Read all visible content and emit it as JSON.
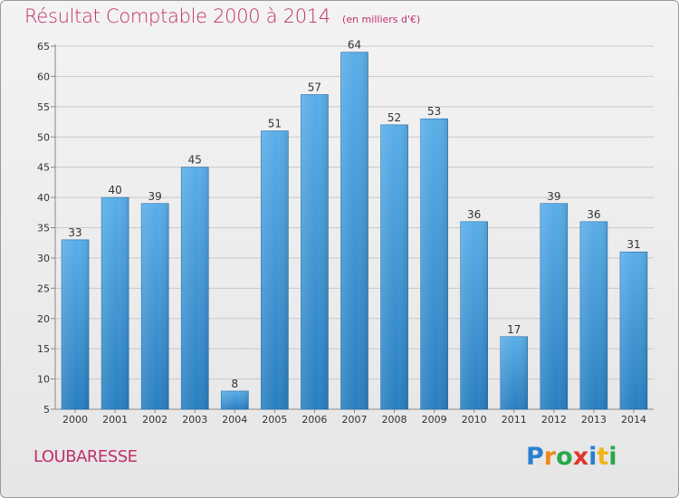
{
  "chart_data": {
    "type": "bar",
    "title": "Résultat Comptable 2000 à 2014",
    "subtitle": "(en milliers d'€)",
    "categories": [
      "2000",
      "2001",
      "2002",
      "2003",
      "2004",
      "2005",
      "2006",
      "2007",
      "2008",
      "2009",
      "2010",
      "2011",
      "2012",
      "2013",
      "2014"
    ],
    "values": [
      33,
      40,
      39,
      45,
      8,
      51,
      57,
      64,
      52,
      53,
      36,
      17,
      39,
      36,
      31
    ],
    "ylim": [
      5,
      65
    ],
    "yticks": [
      5,
      10,
      15,
      20,
      25,
      30,
      35,
      40,
      45,
      50,
      55,
      60,
      65
    ],
    "grid": true,
    "bar_color_top": "#5aaee8",
    "bar_color_bottom": "#2a7fc0",
    "xlabel": "",
    "ylabel": ""
  },
  "footer": {
    "place": "LOUBARESSE",
    "logo_letters": [
      "P",
      "r",
      "o",
      "x",
      "i",
      "t",
      "i"
    ]
  },
  "colors": {
    "title": "#c0306b",
    "grid": "#c8c8c8",
    "axis_text": "#333333"
  }
}
